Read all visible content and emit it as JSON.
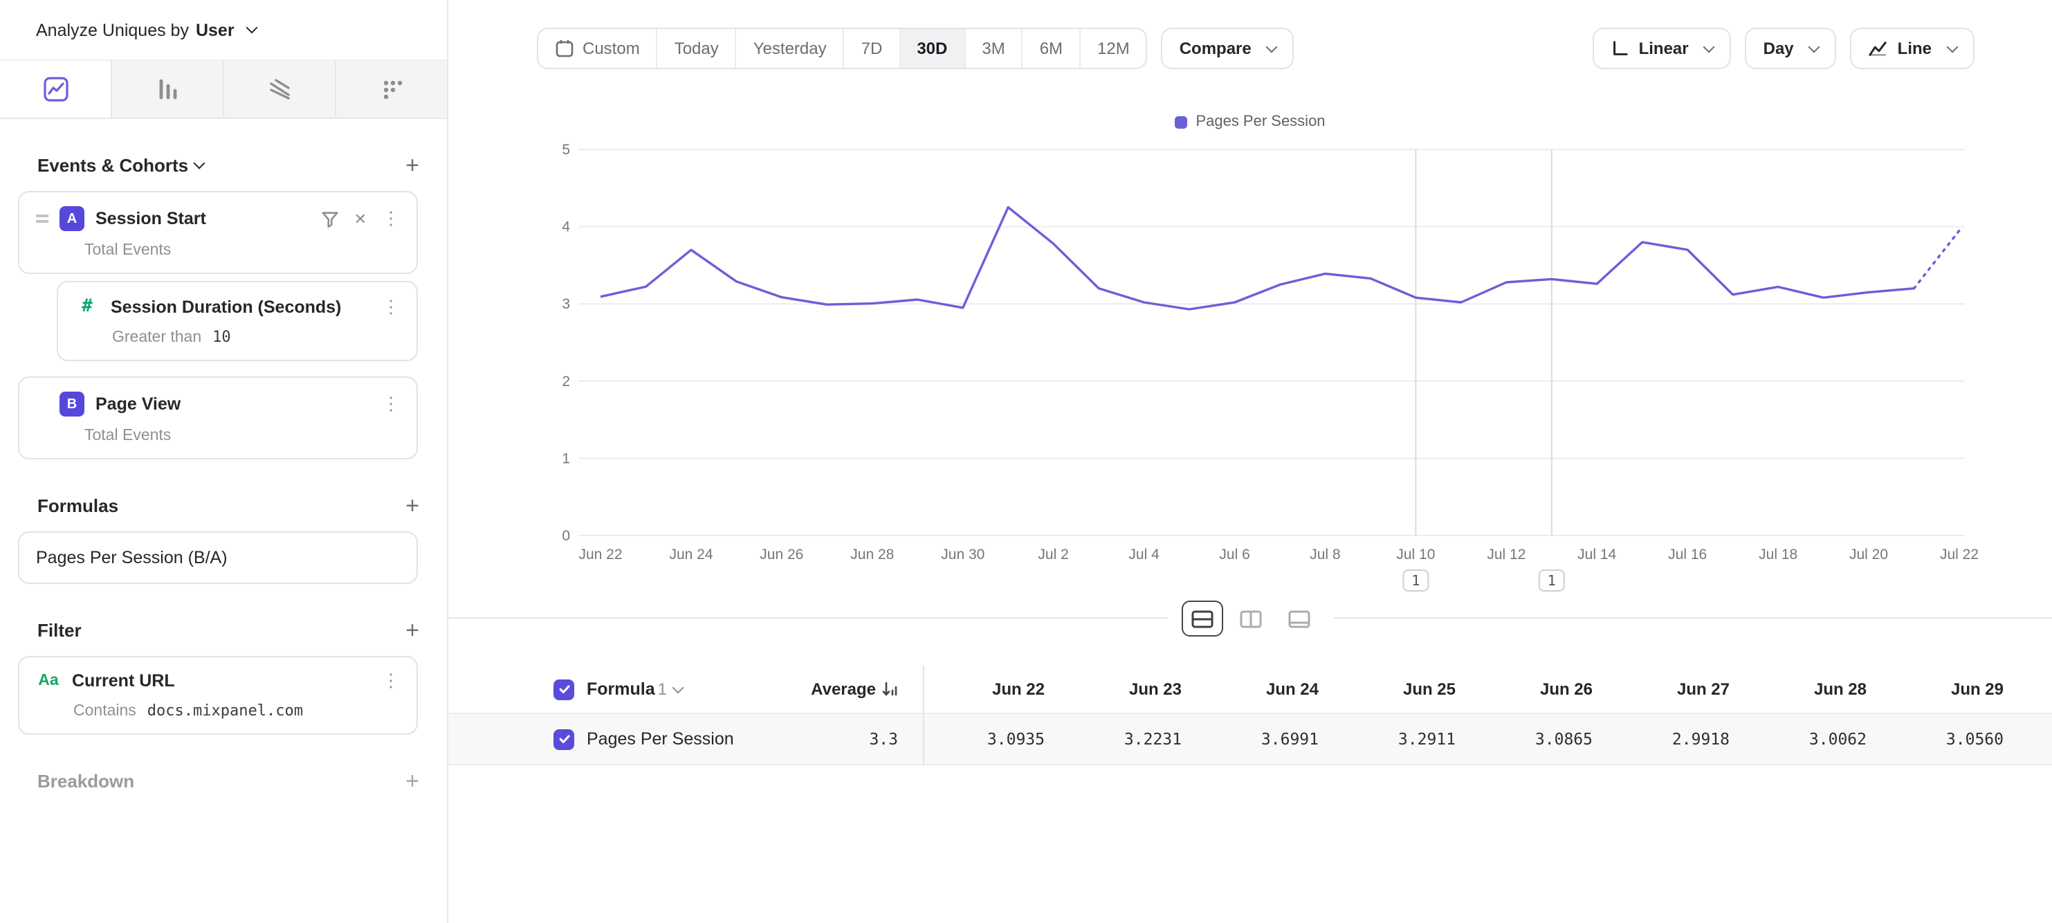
{
  "icons": {
    "plus": "+",
    "close": "✕",
    "dots": "⋮"
  },
  "sidebar": {
    "analyze": {
      "label": "Analyze Uniques by",
      "value": "User"
    },
    "tabs": [
      "insights",
      "funnels",
      "flows",
      "retention"
    ],
    "sections": {
      "events": "Events & Cohorts",
      "formulas": "Formulas",
      "filter": "Filter",
      "breakdown": "Breakdown"
    },
    "events": [
      {
        "badge": "A",
        "name": "Session Start",
        "measure": "Total Events"
      },
      {
        "badge": "B",
        "name": "Page View",
        "measure": "Total Events"
      }
    ],
    "property_filter": {
      "icon": "#",
      "name": "Session Duration (Seconds)",
      "operator": "Greater than",
      "value": "10"
    },
    "formulas": [
      {
        "name": "Pages Per Session (B/A)"
      }
    ],
    "filters": [
      {
        "icon": "Aa",
        "name": "Current URL",
        "operator": "Contains",
        "value": "docs.mixpanel.com"
      }
    ]
  },
  "toolbar": {
    "ranges": [
      "Custom",
      "Today",
      "Yesterday",
      "7D",
      "30D",
      "3M",
      "6M",
      "12M"
    ],
    "selected_range": "30D",
    "compare": "Compare",
    "scale": "Linear",
    "interval": "Day",
    "chart_type": "Line"
  },
  "chart_data": {
    "type": "line",
    "legend": "Pages Per Session",
    "color": "#6a5fd9",
    "ylim": [
      0,
      5
    ],
    "yticks": [
      0,
      1,
      2,
      3,
      4,
      5
    ],
    "x": [
      "Jun 22",
      "Jun 23",
      "Jun 24",
      "Jun 25",
      "Jun 26",
      "Jun 27",
      "Jun 28",
      "Jun 29",
      "Jun 30",
      "Jul 1",
      "Jul 2",
      "Jul 3",
      "Jul 4",
      "Jul 5",
      "Jul 6",
      "Jul 7",
      "Jul 8",
      "Jul 9",
      "Jul 10",
      "Jul 11",
      "Jul 12",
      "Jul 13",
      "Jul 14",
      "Jul 15",
      "Jul 16",
      "Jul 17",
      "Jul 18",
      "Jul 19",
      "Jul 20",
      "Jul 21",
      "Jul 22"
    ],
    "x_tick_labels": [
      "Jun 22",
      "Jun 24",
      "Jun 26",
      "Jun 28",
      "Jun 30",
      "Jul 2",
      "Jul 4",
      "Jul 6",
      "Jul 8",
      "Jul 10",
      "Jul 12",
      "Jul 14",
      "Jul 16",
      "Jul 18",
      "Jul 20",
      "Jul 22"
    ],
    "values": [
      3.0935,
      3.2231,
      3.6991,
      3.2911,
      3.0865,
      2.9918,
      3.0062,
      3.056,
      2.95,
      4.25,
      3.78,
      3.2,
      3.02,
      2.93,
      3.02,
      3.25,
      3.39,
      3.33,
      3.08,
      3.02,
      3.28,
      3.32,
      3.26,
      3.8,
      3.7,
      3.12,
      3.22,
      3.08,
      3.15,
      3.2,
      3.95
    ],
    "incomplete_last_segment": true,
    "grid": true,
    "legend_position": "top-center",
    "annotations": [
      {
        "index": 18,
        "label": "1"
      },
      {
        "index": 21,
        "label": "1"
      }
    ]
  },
  "table": {
    "series_label": "Formula",
    "series_number": "1",
    "sort_column": "Average",
    "columns": [
      "Jun 22",
      "Jun 23",
      "Jun 24",
      "Jun 25",
      "Jun 26",
      "Jun 27",
      "Jun 28",
      "Jun 29"
    ],
    "rows": [
      {
        "name": "Pages Per Session",
        "average": "3.3",
        "values": [
          "3.0935",
          "3.2231",
          "3.6991",
          "3.2911",
          "3.0865",
          "2.9918",
          "3.0062",
          "3.0560"
        ]
      }
    ]
  }
}
